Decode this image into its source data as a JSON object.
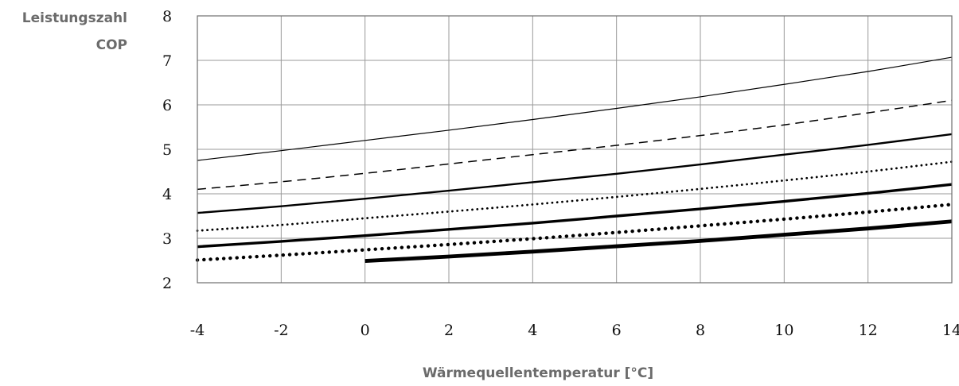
{
  "chart_data": {
    "type": "line",
    "title": "",
    "ylabel_line1": "Leistungszahl",
    "ylabel_line2": "COP",
    "xlabel": "Wärmequellentemperatur [°C]",
    "xlim": [
      -4,
      14
    ],
    "ylim": [
      2,
      8
    ],
    "x_ticks": [
      -4,
      -2,
      0,
      2,
      4,
      6,
      8,
      10,
      12,
      14
    ],
    "x_tick_labels": [
      "-4",
      "-2",
      "0",
      "2",
      "4",
      "6",
      "8",
      "10",
      "12",
      "14"
    ],
    "y_ticks": [
      2,
      3,
      4,
      5,
      6,
      7,
      8
    ],
    "y_tick_labels": [
      "2",
      "3",
      "4",
      "5",
      "6",
      "7",
      "8"
    ],
    "grid": true,
    "legend": "none",
    "colors": {
      "line": "#000000",
      "grid": "#9a9a9a",
      "label": "#6b6b6b"
    },
    "series": [
      {
        "style": "solid-thin",
        "x": [
          -4,
          -2,
          0,
          2,
          4,
          6,
          8,
          10,
          12,
          14
        ],
        "y": [
          4.75,
          4.97,
          5.2,
          5.43,
          5.67,
          5.92,
          6.18,
          6.46,
          6.75,
          7.07
        ]
      },
      {
        "style": "dashed",
        "x": [
          -4,
          -2,
          0,
          2,
          4,
          6,
          8,
          10,
          12,
          14
        ],
        "y": [
          4.1,
          4.27,
          4.46,
          4.67,
          4.88,
          5.09,
          5.31,
          5.55,
          5.82,
          6.1
        ]
      },
      {
        "style": "solid-medium",
        "x": [
          -4,
          -2,
          0,
          2,
          4,
          6,
          8,
          10,
          12,
          14
        ],
        "y": [
          3.57,
          3.72,
          3.89,
          4.07,
          4.26,
          4.45,
          4.66,
          4.88,
          5.1,
          5.34
        ]
      },
      {
        "style": "dotted-thin",
        "x": [
          -4,
          -2,
          0,
          2,
          4,
          6,
          8,
          10,
          12,
          14
        ],
        "y": [
          3.17,
          3.3,
          3.45,
          3.6,
          3.76,
          3.93,
          4.11,
          4.3,
          4.5,
          4.72
        ]
      },
      {
        "style": "solid-thick",
        "x": [
          -4,
          -2,
          0,
          2,
          4,
          6,
          8,
          10,
          12,
          14
        ],
        "y": [
          2.81,
          2.93,
          3.06,
          3.2,
          3.34,
          3.5,
          3.66,
          3.83,
          4.01,
          4.21
        ]
      },
      {
        "style": "dotted-thick",
        "x": [
          -4,
          -2,
          0,
          2,
          4,
          6,
          8,
          10,
          12,
          14
        ],
        "y": [
          2.51,
          2.62,
          2.74,
          2.86,
          2.99,
          3.13,
          3.28,
          3.43,
          3.59,
          3.76
        ]
      },
      {
        "style": "solid-extra-thick",
        "x": [
          0,
          2,
          4,
          6,
          8,
          10,
          12,
          14
        ],
        "y": [
          2.49,
          2.59,
          2.7,
          2.82,
          2.94,
          3.08,
          3.22,
          3.38
        ]
      }
    ]
  }
}
